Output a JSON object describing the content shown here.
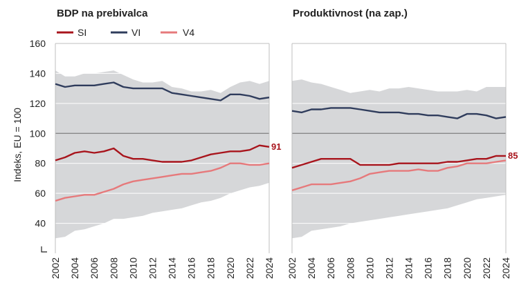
{
  "colors": {
    "band": "#d6d7d9",
    "grid": "#ffffff",
    "reference": "#7f7f7f",
    "SI": "#a8141c",
    "VI": "#2f3c5c",
    "V4": "#e6797b"
  },
  "ylabel": "Indeks, EU = 100",
  "y_ticks": [
    "160",
    "140",
    "120",
    "100",
    "80",
    "60",
    "40"
  ],
  "legend": [
    {
      "key": "SI",
      "label": "SI"
    },
    {
      "key": "VI",
      "label": "VI"
    },
    {
      "key": "V4",
      "label": "V4"
    }
  ],
  "chart_data": [
    {
      "type": "line",
      "title": "BDP na prebivalca",
      "ylabel": "Indeks, EU = 100",
      "ylim": [
        20,
        160
      ],
      "x": [
        2002,
        2003,
        2004,
        2005,
        2006,
        2007,
        2008,
        2009,
        2010,
        2011,
        2012,
        2013,
        2014,
        2015,
        2016,
        2017,
        2018,
        2019,
        2020,
        2021,
        2022,
        2023,
        2024
      ],
      "x_ticks": [
        "2002",
        "2004",
        "2006",
        "2008",
        "2010",
        "2012",
        "2014",
        "2016",
        "2018",
        "2020",
        "2022",
        "2024"
      ],
      "reference_line": 100,
      "band": {
        "upper": [
          142,
          138,
          138,
          140,
          140,
          141,
          142,
          139,
          136,
          134,
          134,
          135,
          131,
          130,
          128,
          128,
          129,
          127,
          131,
          134,
          135,
          133,
          135
        ],
        "lower": [
          30,
          31,
          35,
          36,
          38,
          40,
          43,
          43,
          44,
          45,
          47,
          48,
          49,
          50,
          52,
          54,
          55,
          57,
          60,
          62,
          64,
          65,
          67
        ]
      },
      "series": [
        {
          "name": "SI",
          "values": [
            82,
            84,
            87,
            88,
            87,
            88,
            90,
            85,
            83,
            83,
            82,
            81,
            81,
            81,
            82,
            84,
            86,
            87,
            88,
            88,
            89,
            92,
            91
          ]
        },
        {
          "name": "VI",
          "values": [
            133,
            131,
            132,
            132,
            132,
            133,
            134,
            131,
            130,
            130,
            130,
            130,
            127,
            126,
            125,
            124,
            123,
            122,
            126,
            126,
            125,
            123,
            124
          ]
        },
        {
          "name": "V4",
          "values": [
            55,
            57,
            58,
            59,
            59,
            61,
            63,
            66,
            68,
            69,
            70,
            71,
            72,
            73,
            73,
            74,
            75,
            77,
            80,
            80,
            79,
            79,
            80
          ]
        }
      ],
      "end_label": {
        "series": "SI",
        "text": "91"
      }
    },
    {
      "type": "line",
      "title": "Produktivnost (na zap.)",
      "ylabel": "Indeks, EU = 100",
      "ylim": [
        20,
        160
      ],
      "x": [
        2002,
        2003,
        2004,
        2005,
        2006,
        2007,
        2008,
        2009,
        2010,
        2011,
        2012,
        2013,
        2014,
        2015,
        2016,
        2017,
        2018,
        2019,
        2020,
        2021,
        2022,
        2023,
        2024
      ],
      "x_ticks": [
        "2002",
        "2004",
        "2006",
        "2008",
        "2010",
        "2012",
        "2014",
        "2016",
        "2018",
        "2020",
        "2022",
        "2024"
      ],
      "reference_line": 100,
      "band": {
        "upper": [
          135,
          136,
          134,
          133,
          131,
          129,
          127,
          128,
          129,
          128,
          130,
          130,
          131,
          130,
          129,
          128,
          128,
          128,
          129,
          128,
          131,
          131,
          131
        ],
        "lower": [
          30,
          31,
          35,
          36,
          37,
          38,
          40,
          41,
          42,
          43,
          44,
          45,
          46,
          47,
          48,
          49,
          50,
          52,
          54,
          56,
          57,
          58,
          59
        ]
      },
      "series": [
        {
          "name": "SI",
          "values": [
            77,
            79,
            81,
            83,
            83,
            83,
            83,
            79,
            79,
            79,
            79,
            80,
            80,
            80,
            80,
            80,
            81,
            81,
            82,
            83,
            83,
            85,
            85
          ]
        },
        {
          "name": "VI",
          "values": [
            115,
            114,
            116,
            116,
            117,
            117,
            117,
            116,
            115,
            114,
            114,
            114,
            113,
            113,
            112,
            112,
            111,
            110,
            113,
            113,
            112,
            110,
            111
          ]
        },
        {
          "name": "V4",
          "values": [
            62,
            64,
            66,
            66,
            66,
            67,
            68,
            70,
            73,
            74,
            75,
            75,
            75,
            76,
            75,
            75,
            77,
            78,
            80,
            80,
            80,
            81,
            82
          ]
        }
      ],
      "end_label": {
        "series": "SI",
        "text": "85"
      }
    }
  ]
}
